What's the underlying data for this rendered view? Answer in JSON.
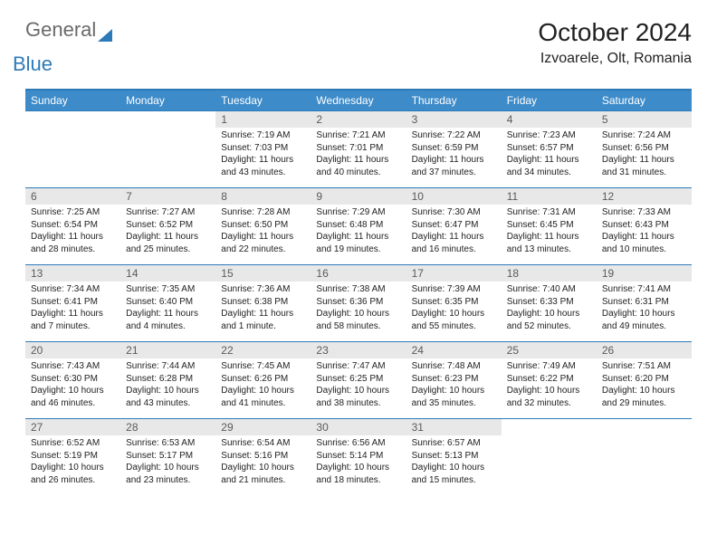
{
  "logo": {
    "text1": "General",
    "text2": "Blue"
  },
  "title": "October 2024",
  "location": "Izvoarele, Olt, Romania",
  "colors": {
    "accent": "#3d8bc9",
    "border": "#2d7ab8",
    "daynum_bg": "#e8e8e8",
    "daynum_fg": "#5a5a5a",
    "text": "#222222",
    "logo_gray": "#6a6a6a"
  },
  "weekdays": [
    "Sunday",
    "Monday",
    "Tuesday",
    "Wednesday",
    "Thursday",
    "Friday",
    "Saturday"
  ],
  "weeks": [
    {
      "days": [
        null,
        null,
        {
          "n": "1",
          "sr": "7:19 AM",
          "ss": "7:03 PM",
          "dl": "11 hours and 43 minutes."
        },
        {
          "n": "2",
          "sr": "7:21 AM",
          "ss": "7:01 PM",
          "dl": "11 hours and 40 minutes."
        },
        {
          "n": "3",
          "sr": "7:22 AM",
          "ss": "6:59 PM",
          "dl": "11 hours and 37 minutes."
        },
        {
          "n": "4",
          "sr": "7:23 AM",
          "ss": "6:57 PM",
          "dl": "11 hours and 34 minutes."
        },
        {
          "n": "5",
          "sr": "7:24 AM",
          "ss": "6:56 PM",
          "dl": "11 hours and 31 minutes."
        }
      ]
    },
    {
      "days": [
        {
          "n": "6",
          "sr": "7:25 AM",
          "ss": "6:54 PM",
          "dl": "11 hours and 28 minutes."
        },
        {
          "n": "7",
          "sr": "7:27 AM",
          "ss": "6:52 PM",
          "dl": "11 hours and 25 minutes."
        },
        {
          "n": "8",
          "sr": "7:28 AM",
          "ss": "6:50 PM",
          "dl": "11 hours and 22 minutes."
        },
        {
          "n": "9",
          "sr": "7:29 AM",
          "ss": "6:48 PM",
          "dl": "11 hours and 19 minutes."
        },
        {
          "n": "10",
          "sr": "7:30 AM",
          "ss": "6:47 PM",
          "dl": "11 hours and 16 minutes."
        },
        {
          "n": "11",
          "sr": "7:31 AM",
          "ss": "6:45 PM",
          "dl": "11 hours and 13 minutes."
        },
        {
          "n": "12",
          "sr": "7:33 AM",
          "ss": "6:43 PM",
          "dl": "11 hours and 10 minutes."
        }
      ]
    },
    {
      "days": [
        {
          "n": "13",
          "sr": "7:34 AM",
          "ss": "6:41 PM",
          "dl": "11 hours and 7 minutes."
        },
        {
          "n": "14",
          "sr": "7:35 AM",
          "ss": "6:40 PM",
          "dl": "11 hours and 4 minutes."
        },
        {
          "n": "15",
          "sr": "7:36 AM",
          "ss": "6:38 PM",
          "dl": "11 hours and 1 minute."
        },
        {
          "n": "16",
          "sr": "7:38 AM",
          "ss": "6:36 PM",
          "dl": "10 hours and 58 minutes."
        },
        {
          "n": "17",
          "sr": "7:39 AM",
          "ss": "6:35 PM",
          "dl": "10 hours and 55 minutes."
        },
        {
          "n": "18",
          "sr": "7:40 AM",
          "ss": "6:33 PM",
          "dl": "10 hours and 52 minutes."
        },
        {
          "n": "19",
          "sr": "7:41 AM",
          "ss": "6:31 PM",
          "dl": "10 hours and 49 minutes."
        }
      ]
    },
    {
      "days": [
        {
          "n": "20",
          "sr": "7:43 AM",
          "ss": "6:30 PM",
          "dl": "10 hours and 46 minutes."
        },
        {
          "n": "21",
          "sr": "7:44 AM",
          "ss": "6:28 PM",
          "dl": "10 hours and 43 minutes."
        },
        {
          "n": "22",
          "sr": "7:45 AM",
          "ss": "6:26 PM",
          "dl": "10 hours and 41 minutes."
        },
        {
          "n": "23",
          "sr": "7:47 AM",
          "ss": "6:25 PM",
          "dl": "10 hours and 38 minutes."
        },
        {
          "n": "24",
          "sr": "7:48 AM",
          "ss": "6:23 PM",
          "dl": "10 hours and 35 minutes."
        },
        {
          "n": "25",
          "sr": "7:49 AM",
          "ss": "6:22 PM",
          "dl": "10 hours and 32 minutes."
        },
        {
          "n": "26",
          "sr": "7:51 AM",
          "ss": "6:20 PM",
          "dl": "10 hours and 29 minutes."
        }
      ]
    },
    {
      "days": [
        {
          "n": "27",
          "sr": "6:52 AM",
          "ss": "5:19 PM",
          "dl": "10 hours and 26 minutes."
        },
        {
          "n": "28",
          "sr": "6:53 AM",
          "ss": "5:17 PM",
          "dl": "10 hours and 23 minutes."
        },
        {
          "n": "29",
          "sr": "6:54 AM",
          "ss": "5:16 PM",
          "dl": "10 hours and 21 minutes."
        },
        {
          "n": "30",
          "sr": "6:56 AM",
          "ss": "5:14 PM",
          "dl": "10 hours and 18 minutes."
        },
        {
          "n": "31",
          "sr": "6:57 AM",
          "ss": "5:13 PM",
          "dl": "10 hours and 15 minutes."
        },
        null,
        null
      ]
    }
  ],
  "labels": {
    "sunrise": "Sunrise:",
    "sunset": "Sunset:",
    "daylight": "Daylight:"
  }
}
